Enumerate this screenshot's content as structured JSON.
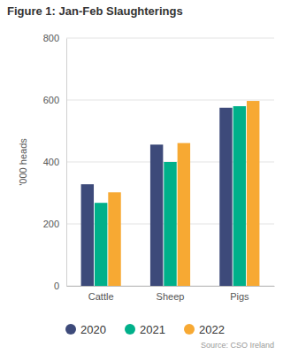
{
  "chart_data": {
    "type": "bar",
    "title": "Figure 1: Jan-Feb Slaughterings",
    "y_label": "'000 heads",
    "source": "Source: CSO Ireland",
    "categories": [
      "Cattle",
      "Sheep",
      "Pigs"
    ],
    "series": [
      {
        "name": "2020",
        "color": "#3d4a7a",
        "values": [
          328,
          456,
          575
        ]
      },
      {
        "name": "2021",
        "color": "#00b08a",
        "values": [
          268,
          400,
          580
        ]
      },
      {
        "name": "2022",
        "color": "#f7a933",
        "values": [
          302,
          461,
          597
        ]
      }
    ],
    "ylim": [
      0,
      800
    ],
    "yticks": [
      0,
      200,
      400,
      600,
      800
    ],
    "grid": true,
    "legend": "bottom"
  }
}
